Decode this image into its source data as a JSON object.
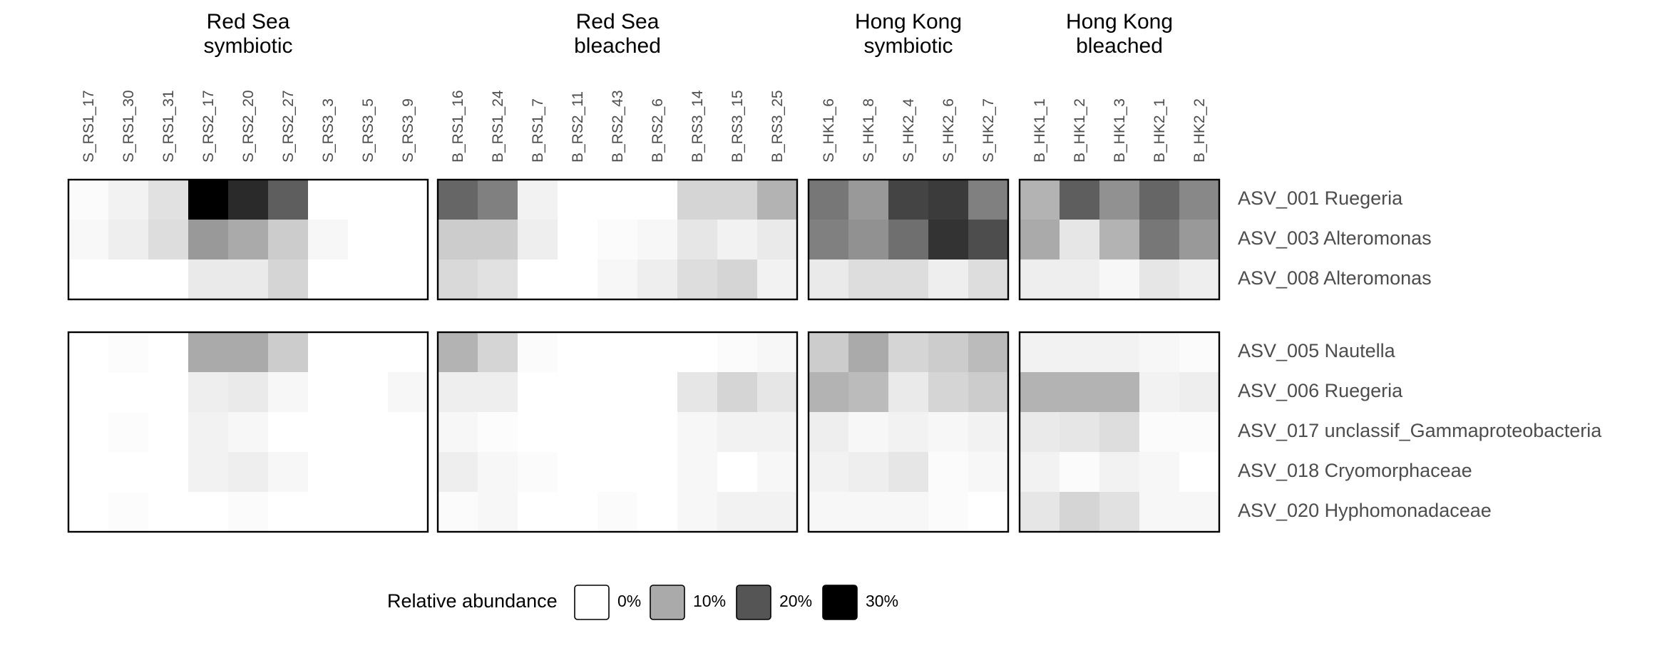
{
  "chart_data": {
    "type": "heatmap",
    "title": "",
    "xlabel": "",
    "ylabel": "",
    "value_scale": [
      0,
      30
    ],
    "groups": [
      {
        "title": [
          "Red Sea",
          "symbiotic"
        ],
        "columns": [
          "S_RS1_17",
          "S_RS1_30",
          "S_RS1_31",
          "S_RS2_17",
          "S_RS2_20",
          "S_RS2_27",
          "S_RS3_3",
          "S_RS3_5",
          "S_RS3_9"
        ]
      },
      {
        "title": [
          "Red Sea",
          "bleached"
        ],
        "columns": [
          "B_RS1_16",
          "B_RS1_24",
          "B_RS1_7",
          "B_RS2_11",
          "B_RS2_43",
          "B_RS2_6",
          "B_RS3_14",
          "B_RS3_15",
          "B_RS3_25"
        ]
      },
      {
        "title": [
          "Hong Kong",
          "symbiotic"
        ],
        "columns": [
          "S_HK1_6",
          "S_HK1_8",
          "S_HK2_4",
          "S_HK2_6",
          "S_HK2_7"
        ]
      },
      {
        "title": [
          "Hong Kong",
          "bleached"
        ],
        "columns": [
          "B_HK1_1",
          "B_HK1_2",
          "B_HK1_3",
          "B_HK2_1",
          "B_HK2_2"
        ]
      }
    ],
    "row_blocks": [
      {
        "rows": [
          "ASV_001 Ruegeria",
          "ASV_003 Alteromonas",
          "ASV_008 Alteromonas"
        ]
      },
      {
        "rows": [
          "ASV_005 Nautella",
          "ASV_006 Ruegeria",
          "ASV_017 unclassif_Gammaproteobacteria",
          "ASV_018 Cryomorphaceae",
          "ASV_020 Hyphomonadaceae"
        ]
      }
    ],
    "values": [
      [
        [
          [
            0.5,
            1.5,
            3.5,
            31,
            25,
            19,
            0,
            0,
            0
          ],
          [
            0.8,
            2,
            4,
            12,
            10,
            6,
            1,
            0,
            0
          ],
          [
            0,
            0,
            0,
            2.5,
            2.5,
            5,
            0,
            0,
            0
          ]
        ],
        [
          [
            18,
            15,
            1.5,
            0,
            0,
            0,
            5,
            5,
            9
          ],
          [
            6,
            6,
            2,
            0,
            0.5,
            1,
            3,
            1.5,
            2.5
          ],
          [
            4.5,
            3.5,
            0,
            0,
            1,
            2,
            4,
            5,
            1.5
          ]
        ],
        [
          [
            16,
            12,
            22,
            23,
            15
          ],
          [
            15,
            13,
            17,
            24,
            21
          ],
          [
            2.5,
            4,
            4,
            2,
            4
          ]
        ],
        [
          [
            9,
            19,
            13,
            18,
            14
          ],
          [
            10,
            3,
            9,
            16,
            12
          ],
          [
            2,
            2,
            1,
            3,
            2
          ]
        ]
      ],
      [
        [
          [
            0,
            0.3,
            0,
            10,
            10,
            6,
            0,
            0,
            0
          ],
          [
            0,
            0,
            0,
            2,
            2.5,
            1,
            0,
            0,
            1
          ],
          [
            0,
            0.3,
            0,
            1.5,
            1,
            0,
            0,
            0,
            0
          ],
          [
            0,
            0,
            0,
            1.5,
            2,
            1,
            0,
            0,
            0
          ],
          [
            0,
            0.3,
            0,
            0,
            0.5,
            0,
            0,
            0,
            0
          ]
        ],
        [
          [
            9,
            5,
            0.5,
            0,
            0,
            0,
            0,
            0.5,
            1
          ],
          [
            2,
            2,
            0,
            0,
            0,
            0,
            3,
            5,
            3
          ],
          [
            1,
            0.3,
            0,
            0,
            0,
            0,
            1,
            1.5,
            1.5
          ],
          [
            2,
            1,
            0.5,
            0,
            0,
            0,
            1,
            0,
            1
          ],
          [
            0.5,
            1,
            0,
            0,
            0.5,
            0,
            1,
            1.5,
            1.5
          ]
        ],
        [
          [
            6,
            10,
            5,
            6,
            8
          ],
          [
            9,
            8,
            2.5,
            5,
            6
          ],
          [
            2,
            1,
            1.5,
            1,
            1.5
          ],
          [
            1.5,
            2,
            3,
            0.5,
            1
          ],
          [
            1,
            1,
            1,
            0.5,
            0
          ]
        ],
        [
          [
            1.5,
            1.5,
            1.5,
            1,
            0.5
          ],
          [
            9,
            9,
            9,
            1.5,
            2
          ],
          [
            2.5,
            3,
            4,
            0.5,
            0.5
          ],
          [
            1.5,
            0.5,
            1.5,
            1,
            0
          ],
          [
            3,
            5,
            3.5,
            1,
            1
          ]
        ]
      ]
    ],
    "legend": {
      "title": "Relative abundance",
      "entries": [
        {
          "label": "0%",
          "value": 0
        },
        {
          "label": "10%",
          "value": 10
        },
        {
          "label": "20%",
          "value": 20
        },
        {
          "label": "30%",
          "value": 30
        }
      ],
      "placement": "bottom-center"
    },
    "colors": {
      "low": "#ffffff",
      "high": "#000000",
      "border": "#000000"
    }
  }
}
